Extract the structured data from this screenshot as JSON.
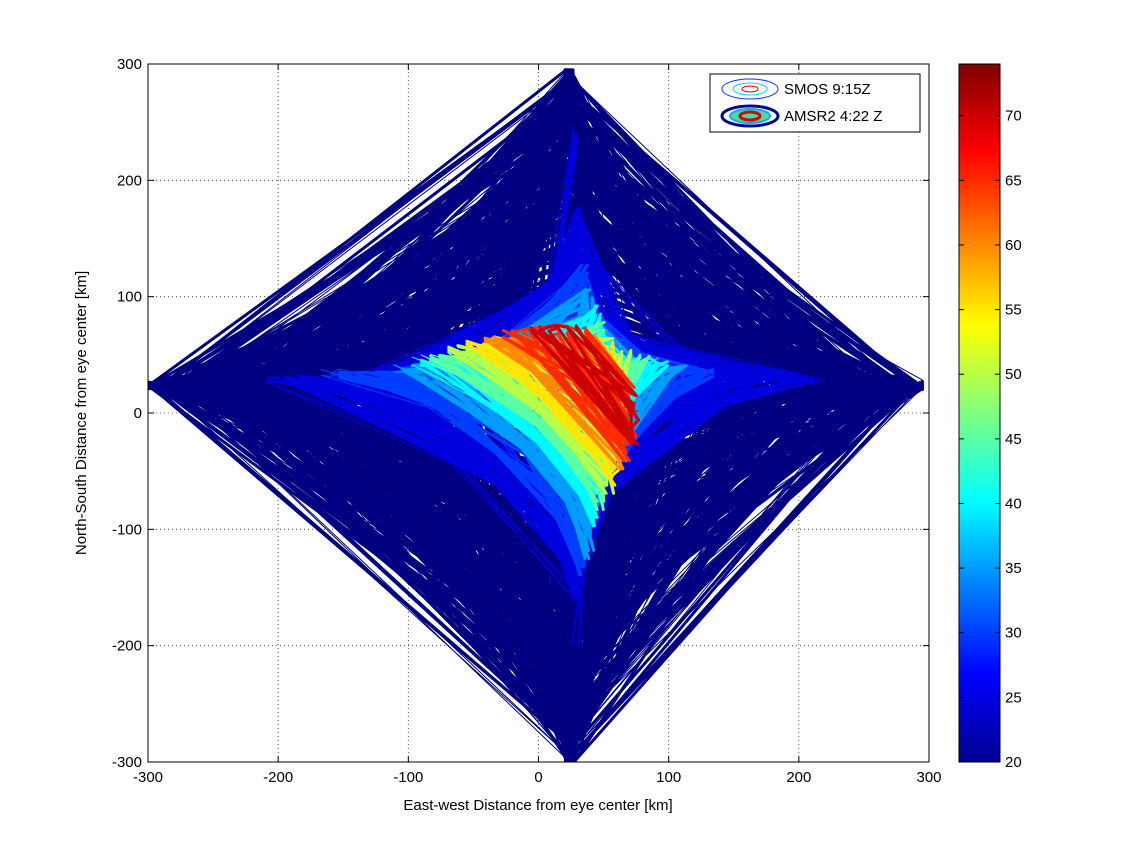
{
  "chart_data": {
    "type": "contour",
    "xlabel": "East-west Distance from eye center [km]",
    "ylabel": "North-South Distance from eye center [km]",
    "xlim": [
      -300,
      300
    ],
    "ylim": [
      -300,
      300
    ],
    "xticks": [
      -300,
      -200,
      -100,
      0,
      100,
      200,
      300
    ],
    "yticks": [
      -300,
      -200,
      -100,
      0,
      100,
      200,
      300
    ],
    "grid": true,
    "legend_position": "top-right",
    "colorbar": {
      "range": [
        20,
        74
      ],
      "ticks": [
        20,
        25,
        30,
        35,
        40,
        45,
        50,
        55,
        60,
        65,
        70
      ],
      "colormap": "jet"
    },
    "series": [
      {
        "name": "SMOS 9:15Z",
        "style": "thin",
        "line_width": 1
      },
      {
        "name": "AMSR2 4:22 Z",
        "style": "thick",
        "line_width": 3
      }
    ],
    "contour_levels": [
      20,
      25,
      30,
      35,
      40,
      45,
      50,
      55,
      60,
      65,
      70
    ],
    "storm_center": [
      0,
      0
    ]
  }
}
